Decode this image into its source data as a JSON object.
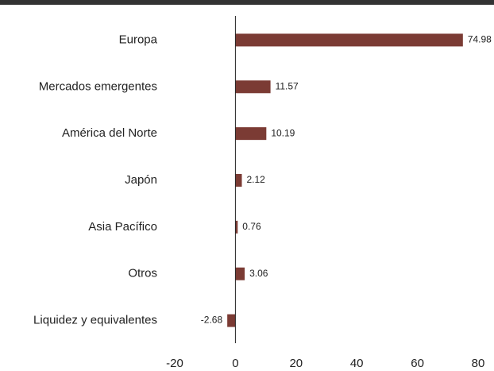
{
  "chart_data": {
    "type": "bar",
    "orientation": "horizontal",
    "categories": [
      "Europa",
      "Mercados emergentes",
      "América del Norte",
      "Japón",
      "Asia Pacífico",
      "Otros",
      "Liquidez y equivalentes"
    ],
    "values": [
      74.98,
      11.57,
      10.19,
      2.12,
      0.76,
      3.06,
      -2.68
    ],
    "color": "#7b3b34",
    "xlim": [
      -20,
      80
    ],
    "xticks": [
      -20,
      0,
      20,
      40,
      60,
      80
    ],
    "grid": false
  }
}
